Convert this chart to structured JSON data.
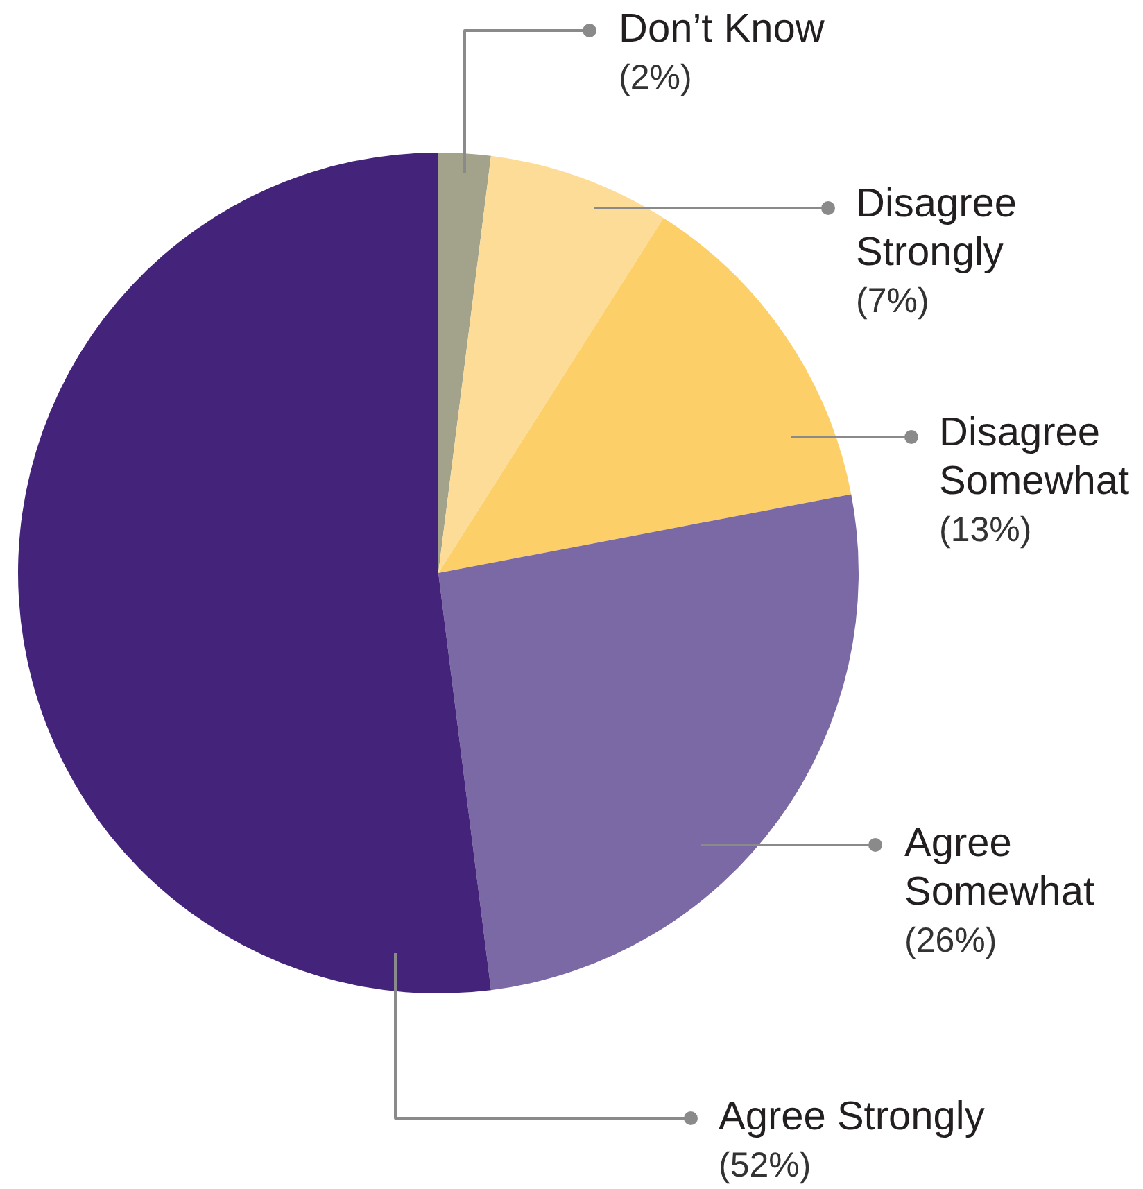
{
  "chart_data": {
    "type": "pie",
    "categories": [
      "Don’t Know",
      "Disagree Strongly",
      "Disagree Somewhat",
      "Agree Somewhat",
      "Agree Strongly"
    ],
    "values": [
      2,
      7,
      13,
      26,
      52
    ],
    "colors": [
      "#a3a38b",
      "#fddc98",
      "#fdcf68",
      "#7b69a5",
      "#43247a"
    ],
    "value_labels": [
      "(2%)",
      "(7%)",
      "(13%)",
      "(26%)",
      "(52%)"
    ],
    "legend": false
  }
}
